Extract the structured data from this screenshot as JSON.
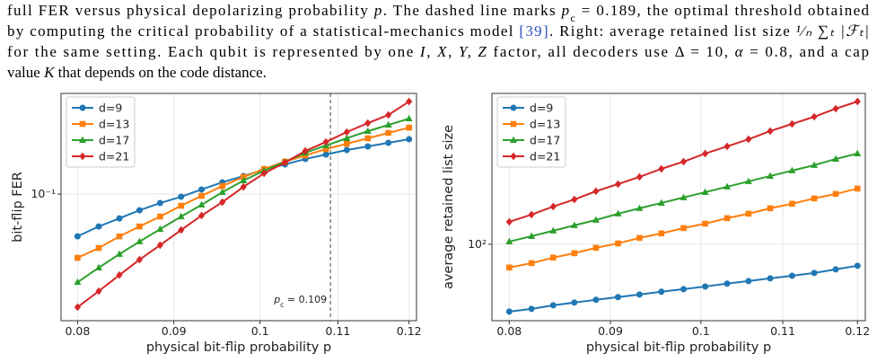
{
  "caption": {
    "lines": [
      [
        {
          "t": "full FER versus physical depolarizing probability "
        },
        {
          "t": "p",
          "i": true
        },
        {
          "t": ". The dashed line marks "
        },
        {
          "t": "p",
          "i": true
        },
        {
          "t": "c",
          "sub": true
        },
        {
          "t": " = 0.189, the optimal threshold obtained"
        }
      ],
      [
        {
          "t": "by computing the critical probability of a statistical-mechanics model "
        },
        {
          "t": "[39]",
          "link": true
        },
        {
          "t": ". Right: average retained list size "
        },
        {
          "t": "¹⁄ₙ ∑ₜ |ℱₜ|",
          "i": true
        }
      ],
      [
        {
          "t": "for the same setting. Each qubit is represented by one "
        },
        {
          "t": "I, X, Y, Z",
          "i": true
        },
        {
          "t": " factor, all decoders use Δ = 10, "
        },
        {
          "t": "α",
          "i": true
        },
        {
          "t": " = 0.8, and a cap"
        }
      ],
      [
        {
          "t": "value "
        },
        {
          "t": "K",
          "i": true
        },
        {
          "t": " that depends on the code distance."
        }
      ]
    ]
  },
  "chart_data": [
    {
      "type": "line",
      "x_label": "physical bit-flip probability p",
      "y_label": "bit-flip FER",
      "xscale": "log",
      "yscale": "log",
      "grid": true,
      "legend": "upper left",
      "xlim": [
        0.0784,
        0.1211
      ],
      "xticks": [
        0.08,
        0.09,
        0.1,
        0.11,
        0.12
      ],
      "ylim": [
        0.0406,
        0.2047
      ],
      "yticks": [
        {
          "value": 0.1,
          "label": "10⁻¹"
        }
      ],
      "x": [
        0.08,
        0.0821,
        0.0842,
        0.0863,
        0.0885,
        0.0908,
        0.0931,
        0.0955,
        0.098,
        0.1005,
        0.1031,
        0.1057,
        0.1084,
        0.1112,
        0.1141,
        0.117,
        0.12
      ],
      "series": [
        {
          "name": "d=9",
          "color": "#1f77b4",
          "marker": "o",
          "values": [
            0.074,
            0.0794,
            0.0841,
            0.0891,
            0.0938,
            0.0981,
            0.1033,
            0.1087,
            0.1137,
            0.1189,
            0.1235,
            0.1283,
            0.1325,
            0.1368,
            0.1404,
            0.144,
            0.1477
          ]
        },
        {
          "name": "d=13",
          "color": "#ff7f0e",
          "marker": "s",
          "values": [
            0.0635,
            0.0681,
            0.074,
            0.0794,
            0.0852,
            0.092,
            0.0987,
            0.1059,
            0.1129,
            0.1196,
            0.1259,
            0.1316,
            0.1377,
            0.1431,
            0.1487,
            0.1545,
            0.1605
          ]
        },
        {
          "name": "d=17",
          "color": "#2ca02c",
          "marker": "^",
          "values": [
            0.0534,
            0.0592,
            0.0652,
            0.0713,
            0.0779,
            0.0852,
            0.0926,
            0.1013,
            0.1101,
            0.1181,
            0.1259,
            0.1342,
            0.1413,
            0.1487,
            0.1565,
            0.1636,
            0.1711
          ]
        },
        {
          "name": "d=21",
          "color": "#d62728",
          "marker": "D",
          "values": [
            0.0447,
            0.0501,
            0.0562,
            0.0627,
            0.0695,
            0.0774,
            0.0858,
            0.0944,
            0.1052,
            0.1159,
            0.1251,
            0.1359,
            0.1449,
            0.1555,
            0.1657,
            0.1756,
            0.1932
          ]
        }
      ],
      "annotations": [
        {
          "x": 0.109,
          "text": [
            {
              "t": "p",
              "i": true
            },
            {
              "t": "c",
              "sub": true
            },
            {
              "t": " = 0.109"
            }
          ]
        }
      ]
    },
    {
      "type": "line",
      "x_label": "physical bit-flip probability p",
      "y_label": "average retained list size",
      "xscale": "log",
      "yscale": "log",
      "grid": true,
      "legend": "upper left",
      "xlim": [
        0.0784,
        0.1211
      ],
      "xticks": [
        0.08,
        0.09,
        0.1,
        0.11,
        0.12
      ],
      "ylim": [
        58.0,
        292.9
      ],
      "yticks": [
        {
          "value": 100,
          "label": "10²"
        }
      ],
      "x": [
        0.08,
        0.0821,
        0.0842,
        0.0863,
        0.0885,
        0.0908,
        0.0931,
        0.0955,
        0.098,
        0.1005,
        0.1031,
        0.1057,
        0.1084,
        0.1112,
        0.1141,
        0.117,
        0.12
      ],
      "series": [
        {
          "name": "d=9",
          "color": "#1f77b4",
          "marker": "o",
          "values": [
            61.9,
            63.1,
            64.7,
            66.0,
            67.3,
            68.6,
            69.9,
            71.3,
            72.6,
            74.0,
            75.5,
            76.9,
            78.4,
            79.9,
            81.5,
            83.6,
            85.8
          ]
        },
        {
          "name": "d=13",
          "color": "#ff7f0e",
          "marker": "s",
          "values": [
            84.7,
            87.4,
            90.9,
            93.8,
            97.5,
            100.6,
            104.6,
            108.0,
            112.2,
            115.8,
            120.4,
            124.3,
            129.2,
            133.4,
            138.6,
            143.1,
            148.7
          ]
        },
        {
          "name": "d=17",
          "color": "#2ca02c",
          "marker": "^",
          "values": [
            101.9,
            105.9,
            110.1,
            114.4,
            118.9,
            124.3,
            129.2,
            134.2,
            139.5,
            144.9,
            150.6,
            156.5,
            162.6,
            169.0,
            175.6,
            183.6,
            190.8
          ]
        },
        {
          "name": "d=21",
          "color": "#d62728",
          "marker": "D",
          "values": [
            117.3,
            123.5,
            130.8,
            137.6,
            145.9,
            153.5,
            161.6,
            171.1,
            180.1,
            190.8,
            200.8,
            211.3,
            223.9,
            235.6,
            248.0,
            262.7,
            276.5
          ]
        }
      ]
    }
  ]
}
